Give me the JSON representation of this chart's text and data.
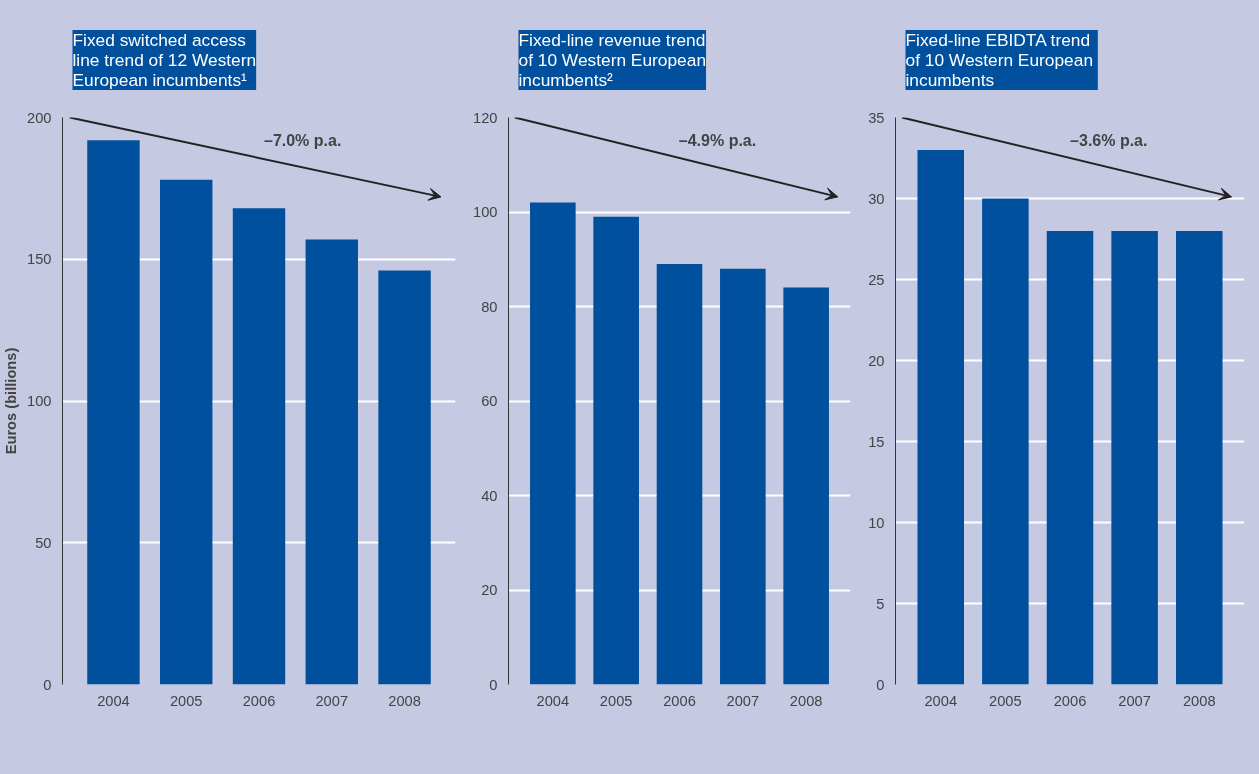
{
  "chart_data": [
    {
      "type": "bar",
      "title": "Fixed switched access\nline trend of 12 Western\nEuropean incumbents¹",
      "ylabel": "Euros (billions)",
      "categories": [
        "2004",
        "2005",
        "2006",
        "2007",
        "2008"
      ],
      "values": [
        192,
        178,
        168,
        157,
        146
      ],
      "color": "#00509e",
      "ylim": [
        0,
        200
      ],
      "yticks": [
        0,
        50,
        100,
        150,
        200
      ],
      "grid": "y",
      "annotations": [
        "–7.0% p.a."
      ]
    },
    {
      "type": "bar",
      "title": "Fixed-line revenue trend\nof 10 Western European\nincumbents²",
      "categories": [
        "2004",
        "2005",
        "2006",
        "2007",
        "2008"
      ],
      "values": [
        102,
        99,
        89,
        88,
        84
      ],
      "color": "#00509e",
      "ylim": [
        0,
        120
      ],
      "yticks": [
        0,
        20,
        40,
        60,
        80,
        100,
        120
      ],
      "grid": "y",
      "annotations": [
        "–4.9% p.a."
      ]
    },
    {
      "type": "bar",
      "title": "Fixed-line EBIDTA trend\nof 10 Western  European\nincumbents",
      "categories": [
        "2004",
        "2005",
        "2006",
        "2007",
        "2008"
      ],
      "values": [
        33,
        30,
        28,
        28,
        28
      ],
      "color": "#00509e",
      "ylim": [
        0,
        35
      ],
      "yticks": [
        0,
        5,
        10,
        15,
        20,
        25,
        30,
        35
      ],
      "grid": "y",
      "annotations": [
        "–3.6% p.a."
      ]
    }
  ]
}
